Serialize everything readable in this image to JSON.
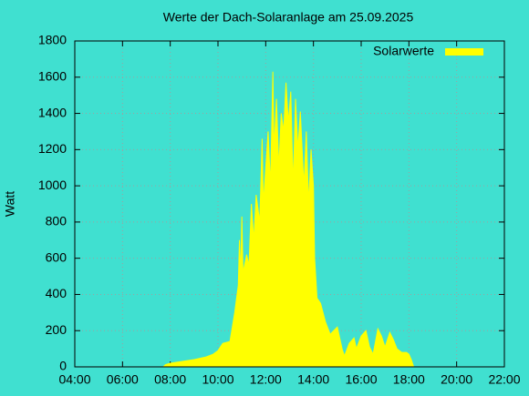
{
  "chart_data": {
    "type": "area",
    "title": "Werte der Dach-Solaranlage am 25.09.2025",
    "y_label": "Watt",
    "legend": "top-right",
    "grid": true,
    "background": "#40e0d0",
    "x": [
      7.7,
      7.8,
      8.0,
      8.5,
      9.0,
      9.5,
      9.8,
      10.0,
      10.2,
      10.5,
      10.7,
      10.85,
      10.9,
      10.95,
      11.0,
      11.05,
      11.2,
      11.3,
      11.4,
      11.5,
      11.6,
      11.75,
      11.85,
      11.9,
      12.0,
      12.1,
      12.2,
      12.3,
      12.35,
      12.45,
      12.55,
      12.65,
      12.75,
      12.85,
      12.95,
      13.05,
      13.15,
      13.25,
      13.35,
      13.45,
      13.6,
      13.7,
      13.8,
      13.9,
      14.0,
      14.05,
      14.15,
      14.3,
      14.5,
      14.7,
      15.0,
      15.2,
      15.3,
      15.5,
      15.7,
      15.8,
      16.0,
      16.2,
      16.35,
      16.5,
      16.7,
      16.85,
      17.0,
      17.2,
      17.35,
      17.5,
      17.7,
      17.9,
      18.0,
      18.1,
      18.2
    ],
    "series": [
      {
        "name": "Solarwerte",
        "color": "#ffff00",
        "values": [
          0,
          12,
          20,
          30,
          40,
          55,
          70,
          90,
          130,
          140,
          300,
          450,
          700,
          500,
          830,
          520,
          620,
          560,
          900,
          700,
          950,
          800,
          1260,
          900,
          1100,
          1300,
          1000,
          1630,
          1200,
          1480,
          1100,
          1400,
          1300,
          1570,
          1350,
          1520,
          1000,
          1480,
          1200,
          1410,
          1000,
          1300,
          900,
          1200,
          1000,
          600,
          380,
          350,
          250,
          180,
          220,
          100,
          60,
          130,
          160,
          100,
          170,
          200,
          110,
          70,
          210,
          170,
          110,
          190,
          150,
          100,
          80,
          80,
          70,
          40,
          0
        ]
      }
    ],
    "xlim": [
      4,
      22
    ],
    "xticks": [
      {
        "value": 4,
        "label": "04:00"
      },
      {
        "value": 6,
        "label": "06:00"
      },
      {
        "value": 8,
        "label": "08:00"
      },
      {
        "value": 10,
        "label": "10:00"
      },
      {
        "value": 12,
        "label": "12:00"
      },
      {
        "value": 14,
        "label": "14:00"
      },
      {
        "value": 16,
        "label": "16:00"
      },
      {
        "value": 18,
        "label": "18:00"
      },
      {
        "value": 20,
        "label": "20:00"
      },
      {
        "value": 22,
        "label": "22:00"
      }
    ],
    "ylim": [
      0,
      1800
    ],
    "yticks": [
      0,
      200,
      400,
      600,
      800,
      1000,
      1200,
      1400,
      1600,
      1800
    ]
  }
}
